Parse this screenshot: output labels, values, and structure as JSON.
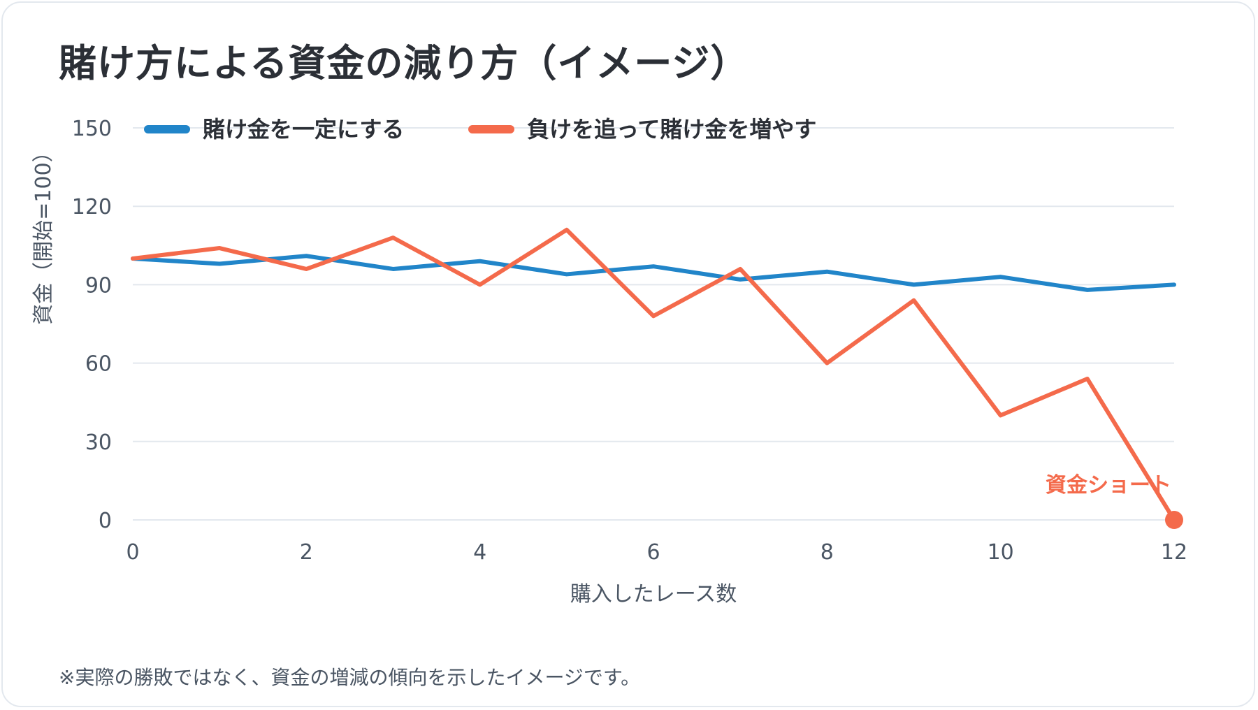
{
  "title": "賭け方による資金の減り方（イメージ）",
  "footnote": "※実際の勝敗ではなく、資金の増減の傾向を示したイメージです。",
  "chart_data": {
    "type": "line",
    "xlabel": "購入したレース数",
    "ylabel": "資金（開始=100）",
    "xlim": [
      0,
      12
    ],
    "ylim": [
      0,
      150
    ],
    "xticks": [
      0,
      2,
      4,
      6,
      8,
      10,
      12
    ],
    "yticks": [
      0,
      30,
      60,
      90,
      120,
      150
    ],
    "grid": true,
    "legend_position": "top-left",
    "x": [
      0,
      1,
      2,
      3,
      4,
      5,
      6,
      7,
      8,
      9,
      10,
      11,
      12
    ],
    "series": [
      {
        "name": "賭け金を一定にする",
        "color": "#2185c9",
        "values": [
          100,
          98,
          101,
          96,
          99,
          94,
          97,
          92,
          95,
          90,
          93,
          88,
          90
        ]
      },
      {
        "name": "負けを追って賭け金を増やす",
        "color": "#f46a4b",
        "values": [
          100,
          104,
          96,
          108,
          90,
          111,
          78,
          96,
          60,
          84,
          40,
          54,
          0
        ]
      }
    ],
    "annotations": [
      {
        "text": "資金ショート",
        "x": 12,
        "y": 0,
        "color": "#f46a4b"
      }
    ]
  }
}
